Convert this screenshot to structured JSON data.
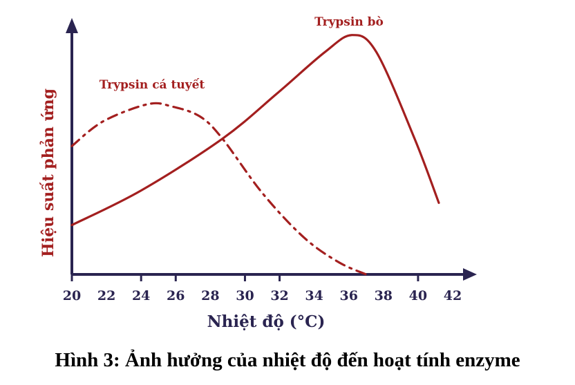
{
  "chart_data": {
    "type": "line",
    "title": "",
    "xlabel": "Nhiệt độ (°C)",
    "ylabel": "Hiệu suất phản ứng",
    "xlim": [
      20,
      42
    ],
    "ylim": [
      0,
      100
    ],
    "x_tick_labels": [
      "20",
      "22",
      "24",
      "26",
      "28",
      "30",
      "32",
      "34",
      "36",
      "38",
      "40",
      "42"
    ],
    "x_tick_marks": [
      20,
      24,
      26,
      30,
      32,
      40
    ],
    "grid": false,
    "series": [
      {
        "name": "Trypsin bò",
        "style": "solid",
        "color": "#a31f1f",
        "x": [
          20,
          24,
          28.7,
          31.8,
          34.6,
          36.2,
          37.6,
          39.8,
          41.2
        ],
        "y": [
          20,
          34,
          55,
          73,
          90,
          97,
          90,
          55,
          29
        ]
      },
      {
        "name": "Trypsin cá tuyết",
        "style": "dash-dot",
        "color": "#a31f1f",
        "x": [
          20,
          21.8,
          24.4,
          25.8,
          27.4,
          28.7,
          31,
          33.4,
          35.4,
          37
        ],
        "y": [
          52,
          62,
          69,
          68,
          64,
          55,
          33,
          15,
          5,
          0
        ]
      }
    ],
    "axis_color": "#2a2450"
  },
  "caption": "Hình 3: Ảnh hưởng của nhiệt độ đến hoạt tính enzyme"
}
